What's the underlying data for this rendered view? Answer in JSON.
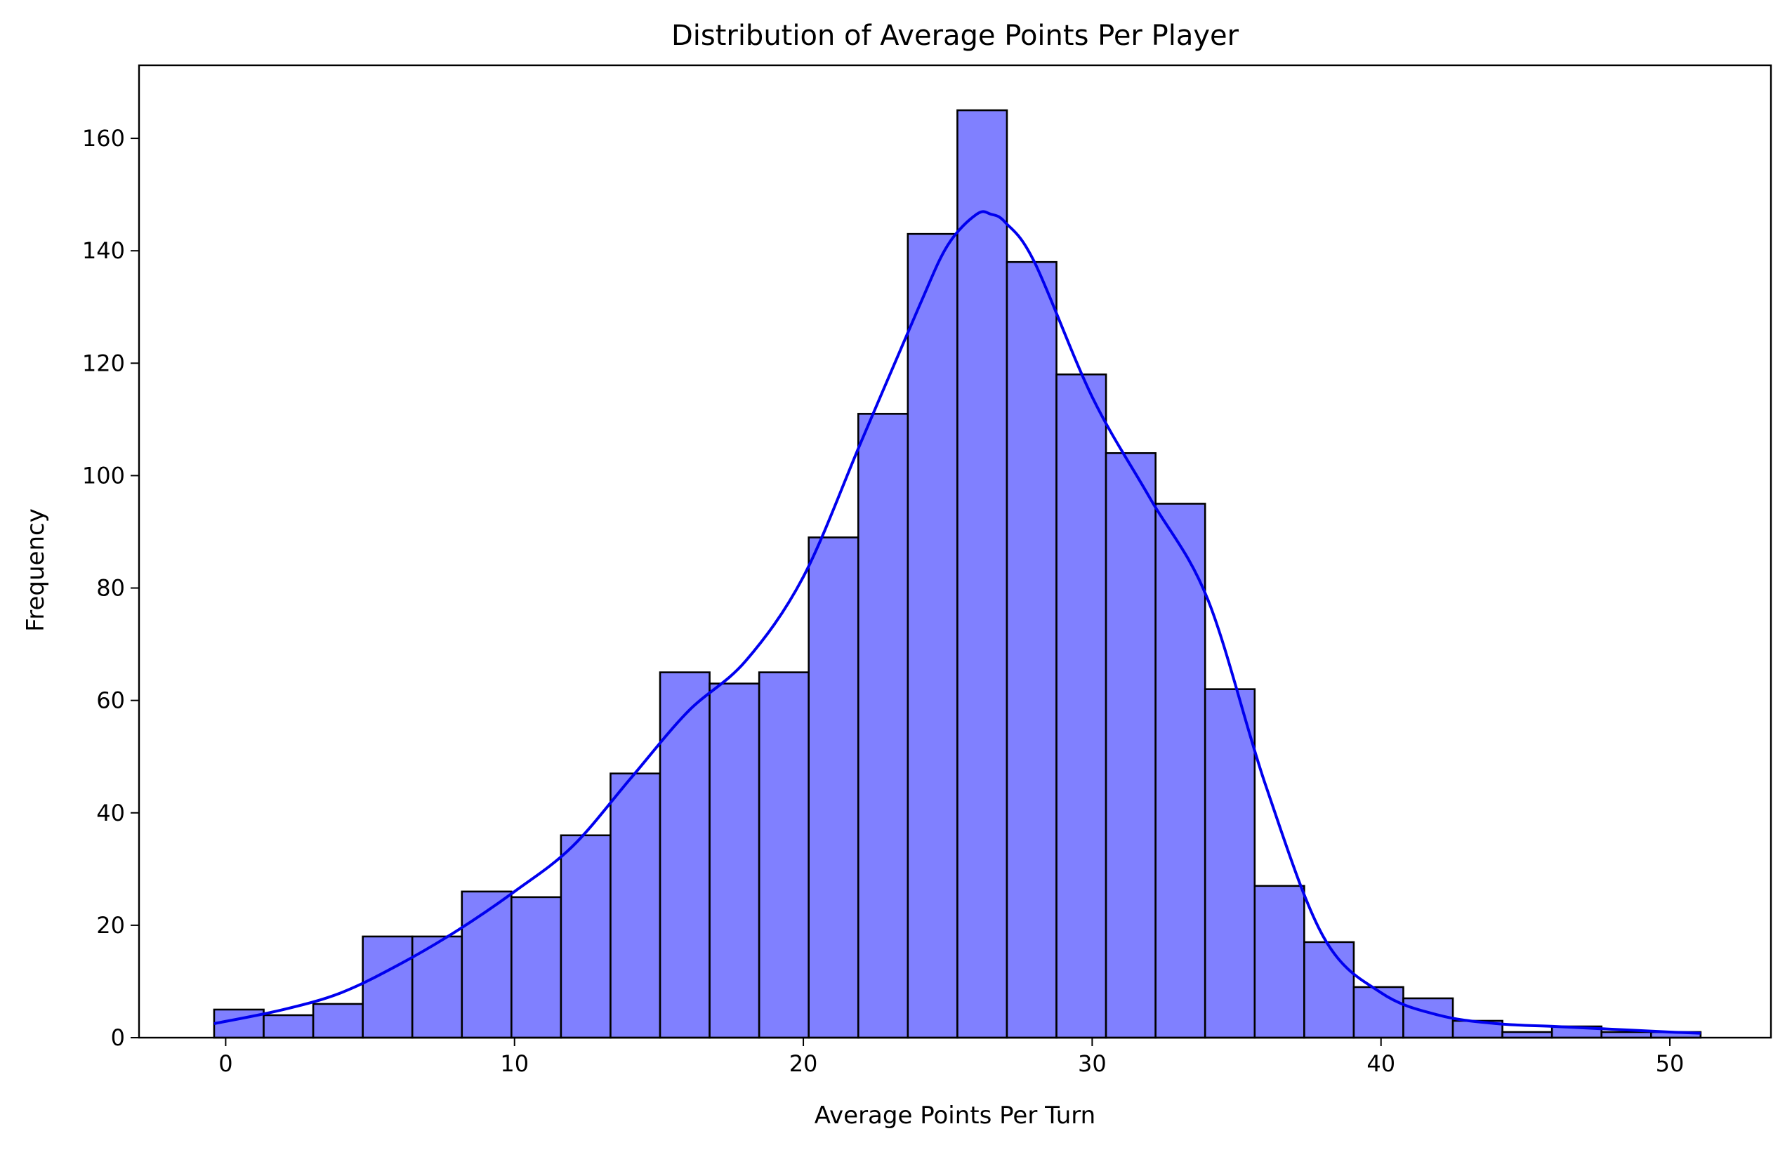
{
  "chart_data": {
    "type": "bar",
    "title": "Distribution of Average Points Per Player",
    "xlabel": "Average Points Per Turn",
    "ylabel": "Frequency",
    "xlim": [
      -3.0,
      53.5
    ],
    "ylim": [
      0,
      173
    ],
    "xticks": [
      0,
      10,
      20,
      30,
      40,
      50
    ],
    "yticks": [
      0,
      20,
      40,
      60,
      80,
      100,
      120,
      140,
      160
    ],
    "bin_edges": [
      -0.4,
      1.316,
      3.031,
      4.747,
      6.462,
      8.178,
      9.893,
      11.609,
      13.324,
      15.04,
      16.755,
      18.471,
      20.186,
      21.902,
      23.617,
      25.333,
      27.048,
      28.764,
      30.479,
      32.195,
      33.91,
      35.626,
      37.341,
      39.057,
      40.772,
      42.488,
      44.203,
      45.919,
      47.634,
      49.35,
      51.065
    ],
    "counts": [
      5,
      4,
      6,
      18,
      18,
      26,
      25,
      36,
      47,
      65,
      63,
      65,
      89,
      111,
      143,
      165,
      138,
      118,
      104,
      95,
      62,
      27,
      17,
      9,
      7,
      3,
      1,
      2,
      1,
      1
    ],
    "kde_curve": {
      "x": [
        -0.4,
        2,
        4,
        6,
        8,
        10,
        12,
        14,
        16,
        18,
        20,
        22,
        24,
        25,
        26,
        26.5,
        27,
        28,
        30,
        32,
        34,
        36,
        38,
        40,
        42,
        44,
        46,
        48,
        50,
        51.065
      ],
      "y": [
        2.5,
        5,
        8,
        13,
        19,
        26,
        34,
        46,
        58,
        67,
        82,
        106,
        130,
        141,
        146.5,
        146.5,
        145,
        138,
        114,
        96,
        78,
        45,
        18,
        8,
        4,
        2.5,
        2,
        1.5,
        1,
        0.8
      ]
    },
    "colors": {
      "bar_fill": "#8080ff",
      "bar_edge": "#000000",
      "kde_line": "#0000ee"
    },
    "grid": false,
    "legend": "none"
  }
}
